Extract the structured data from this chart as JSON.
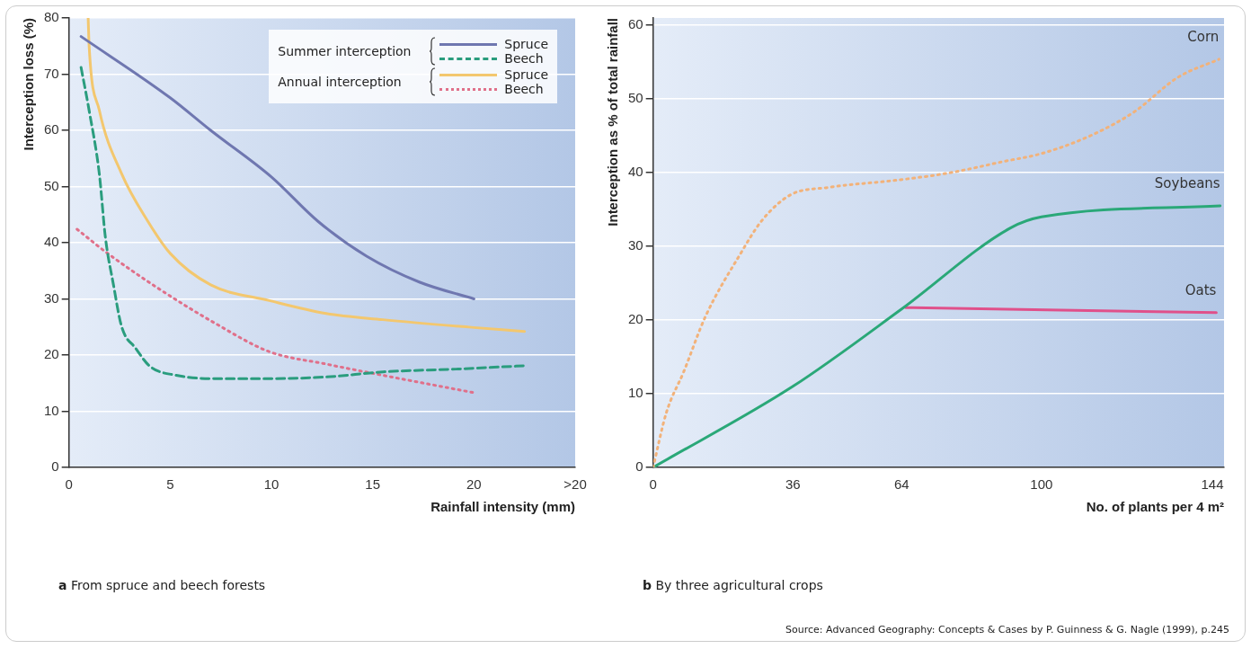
{
  "chart_data": [
    {
      "type": "line",
      "title": "a From spruce and beech forests",
      "xlabel": "Rainfall intensity (mm)",
      "ylabel": "Interception loss (%)",
      "annotations": [
        "Summer interception",
        "Annual interception"
      ],
      "xlim": [
        0,
        25
      ],
      "xticks": [
        0,
        5,
        10,
        15,
        20,
        {
          "value": 25,
          "label": ">20"
        }
      ],
      "ylim": [
        0,
        80
      ],
      "yticks": [
        0,
        10,
        20,
        30,
        40,
        50,
        60,
        70,
        80
      ],
      "grid": "y",
      "legend": "top right",
      "series": [
        {
          "name": "Spruce",
          "color": "#6f77b0",
          "line_style": "solid",
          "x": [
            0.6,
            5,
            7,
            10,
            12.3,
            14.7,
            17.3,
            20
          ],
          "values": [
            76.7,
            65.8,
            60,
            51.7,
            43.8,
            37.6,
            33,
            30
          ]
        },
        {
          "name": "Beech",
          "color": "#2a9d7e",
          "line_style": "dashed",
          "x": [
            0.6,
            1,
            1.5,
            1.8,
            2.2,
            2.6,
            3.3,
            4,
            5.3,
            7.2,
            9.9,
            12.7,
            15.5,
            19.1,
            22.5
          ],
          "values": [
            71.2,
            63.5,
            52.3,
            41,
            32.5,
            25.1,
            21.2,
            18,
            16.4,
            15.8,
            15.8,
            16.1,
            17,
            17.5,
            18.1
          ]
        },
        {
          "name": "Spruce",
          "color": "#f3c76e",
          "line_style": "solid",
          "x": [
            0.95,
            1,
            1.5,
            2.6,
            3.9,
            5,
            7,
            9.9,
            12.7,
            15.5,
            20,
            22.5
          ],
          "values": [
            80,
            74.9,
            63.6,
            52.3,
            43.8,
            38.1,
            32.5,
            29.7,
            27.4,
            26.3,
            24.9,
            24.2
          ]
        },
        {
          "name": "Beech",
          "color": "#e0708a",
          "line_style": "dotted",
          "x": [
            0.4,
            1.8,
            4.4,
            7.2,
            9.9,
            12.7,
            15.5,
            20
          ],
          "values": [
            42.4,
            38.4,
            31.9,
            25.7,
            20.6,
            18.4,
            16.4,
            13.3
          ]
        }
      ]
    },
    {
      "type": "line",
      "title": "b By three agricultural crops",
      "xlabel": "No. of plants per 4 m²",
      "ylabel": "Interception as % of total rainfall",
      "annotations": [
        "Source: Advanced Geography: Concepts & Cases by P. Guinness & G. Nagle (1999), p.245"
      ],
      "xlim": [
        0,
        147
      ],
      "xticks": [
        0,
        36,
        64,
        100,
        144
      ],
      "ylim": [
        0,
        61
      ],
      "yticks": [
        0,
        10,
        20,
        30,
        40,
        50,
        60
      ],
      "grid": "y",
      "series": [
        {
          "name": "Corn",
          "color": "#f2b27a",
          "line_style": "dotted",
          "x": [
            0,
            3.4,
            7.9,
            13.5,
            22.5,
            28,
            35.4,
            45,
            63,
            76.5,
            90,
            100,
            112.5,
            124,
            135,
            145.7
          ],
          "values": [
            0,
            7.4,
            13,
            20.5,
            29,
            33.5,
            37,
            38,
            39,
            40,
            41.5,
            42.6,
            45,
            48.3,
            52.9,
            55.4
          ]
        },
        {
          "name": "Soybeans",
          "color": "#2aa878",
          "line_style": "solid",
          "x": [
            0,
            36,
            64,
            92,
            100,
            146
          ],
          "values": [
            0,
            11,
            21.5,
            32.5,
            34,
            35.5
          ]
        },
        {
          "name": "Oats",
          "color": "#e0508a",
          "line_style": "solid",
          "x": [
            65,
            145
          ],
          "values": [
            21.7,
            21
          ]
        }
      ]
    }
  ]
}
